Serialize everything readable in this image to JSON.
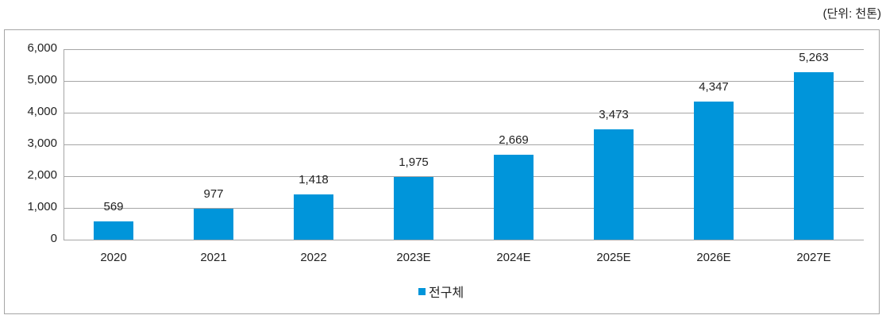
{
  "unit_label": "(단위: 천톤)",
  "legend": {
    "label": "전구체",
    "color": "#0095da"
  },
  "y_ticks": [
    "6,000",
    "5,000",
    "4,000",
    "3,000",
    "2,000",
    "1,000",
    "0"
  ],
  "bars": [
    {
      "category": "2020",
      "value": 569,
      "label": "569"
    },
    {
      "category": "2021",
      "value": 977,
      "label": "977"
    },
    {
      "category": "2022",
      "value": 1418,
      "label": "1,418"
    },
    {
      "category": "2023E",
      "value": 1975,
      "label": "1,975"
    },
    {
      "category": "2024E",
      "value": 2669,
      "label": "2,669"
    },
    {
      "category": "2025E",
      "value": 3473,
      "label": "3,473"
    },
    {
      "category": "2026E",
      "value": 4347,
      "label": "4,347"
    },
    {
      "category": "2027E",
      "value": 5263,
      "label": "5,263"
    }
  ],
  "chart_data": {
    "type": "bar",
    "title": "",
    "subtitle": "(단위: 천톤)",
    "categories": [
      "2020",
      "2021",
      "2022",
      "2023E",
      "2024E",
      "2025E",
      "2026E",
      "2027E"
    ],
    "series": [
      {
        "name": "전구체",
        "color": "#0095da",
        "values": [
          569,
          977,
          1418,
          1975,
          2669,
          3473,
          4347,
          5263
        ]
      }
    ],
    "data_labels": [
      "569",
      "977",
      "1,418",
      "1,975",
      "2,669",
      "3,473",
      "4,347",
      "5,263"
    ],
    "xlabel": "",
    "ylabel": "",
    "ylim": [
      0,
      6000
    ],
    "yticks": [
      0,
      1000,
      2000,
      3000,
      4000,
      5000,
      6000
    ],
    "grid": "horizontal",
    "legend_position": "bottom",
    "units": "천톤"
  }
}
